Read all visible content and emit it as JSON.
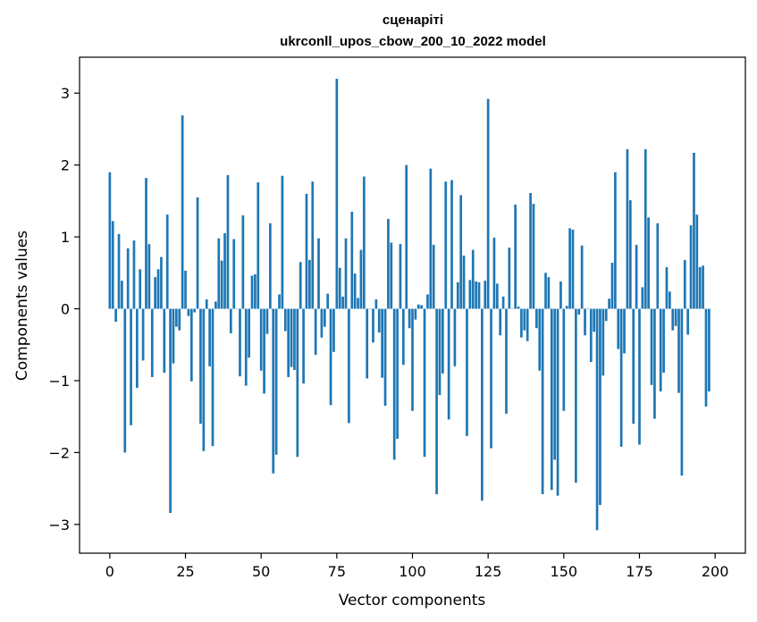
{
  "chart_data": {
    "type": "bar",
    "title_line1": "сценаріті",
    "title_line2": "ukrconll_upos_cbow_200_10_2022 model",
    "xlabel": "Vector components",
    "ylabel": "Components values",
    "xlim": [
      -10,
      210
    ],
    "ylim": [
      -3.4,
      3.5
    ],
    "xticks": [
      0,
      25,
      50,
      75,
      100,
      125,
      150,
      175,
      200
    ],
    "yticks": [
      -3,
      -2,
      -1,
      0,
      1,
      2,
      3
    ],
    "xtick_labels": [
      "0",
      "25",
      "50",
      "75",
      "100",
      "125",
      "150",
      "175",
      "200"
    ],
    "ytick_labels": [
      "−3",
      "−2",
      "−1",
      "0",
      "1",
      "2",
      "3"
    ],
    "bar_color": "#1f77b4",
    "values": [
      1.9,
      1.22,
      -0.18,
      1.04,
      0.39,
      -2.0,
      0.84,
      -1.62,
      0.95,
      -1.1,
      0.55,
      -0.72,
      1.82,
      0.9,
      -0.95,
      0.44,
      0.55,
      0.72,
      -0.89,
      1.31,
      -2.84,
      -0.76,
      -0.25,
      -0.3,
      2.69,
      0.53,
      -0.1,
      -1.01,
      -0.05,
      1.55,
      -1.6,
      -1.98,
      0.13,
      -0.8,
      -1.91,
      0.1,
      0.98,
      0.67,
      1.05,
      1.86,
      -0.34,
      0.97,
      0.0,
      -0.94,
      1.3,
      -1.07,
      -0.68,
      0.46,
      0.48,
      1.76,
      -0.86,
      -1.18,
      -0.35,
      1.19,
      -2.29,
      -2.03,
      0.2,
      1.85,
      -0.31,
      -0.95,
      -0.81,
      -0.85,
      -2.06,
      0.65,
      -1.04,
      1.6,
      0.68,
      1.77,
      -0.64,
      0.98,
      -0.4,
      -0.25,
      0.21,
      -1.34,
      -0.6,
      3.2,
      0.57,
      0.17,
      0.98,
      -1.59,
      1.35,
      0.49,
      0.15,
      0.82,
      1.84,
      -0.97,
      0.0,
      -0.47,
      0.13,
      -0.33,
      -0.96,
      -1.35,
      1.25,
      0.92,
      -2.1,
      -1.81,
      0.9,
      -0.78,
      2.0,
      -0.27,
      -1.42,
      -0.15,
      0.06,
      0.05,
      -2.06,
      0.2,
      1.95,
      0.89,
      -2.58,
      -1.2,
      -0.9,
      1.77,
      -1.54,
      1.79,
      -0.8,
      0.37,
      1.58,
      0.74,
      -1.77,
      0.4,
      0.82,
      0.38,
      0.37,
      -2.67,
      0.39,
      2.92,
      -1.94,
      0.99,
      0.35,
      -0.37,
      0.17,
      -1.46,
      0.85,
      0.0,
      1.45,
      0.03,
      -0.4,
      -0.3,
      -0.45,
      1.61,
      1.46,
      -0.27,
      -0.86,
      -2.58,
      0.5,
      0.44,
      -2.52,
      -2.1,
      -2.6,
      0.38,
      -1.42,
      0.04,
      1.12,
      1.1,
      -2.42,
      -0.08,
      0.88,
      -0.37,
      0.0,
      -0.74,
      -0.32,
      -3.08,
      -2.73,
      -0.93,
      -0.17,
      0.14,
      0.64,
      1.9,
      -0.56,
      -1.92,
      -0.62,
      2.22,
      1.51,
      -1.6,
      0.89,
      -1.89,
      0.3,
      2.22,
      1.27,
      -1.06,
      -1.53,
      1.19,
      -1.15,
      -0.89,
      0.58,
      0.24,
      -0.3,
      -0.24,
      -1.17,
      -2.32,
      0.68,
      -0.36,
      1.16,
      2.17,
      1.31,
      0.58,
      0.6,
      -1.36,
      -1.15
    ]
  }
}
